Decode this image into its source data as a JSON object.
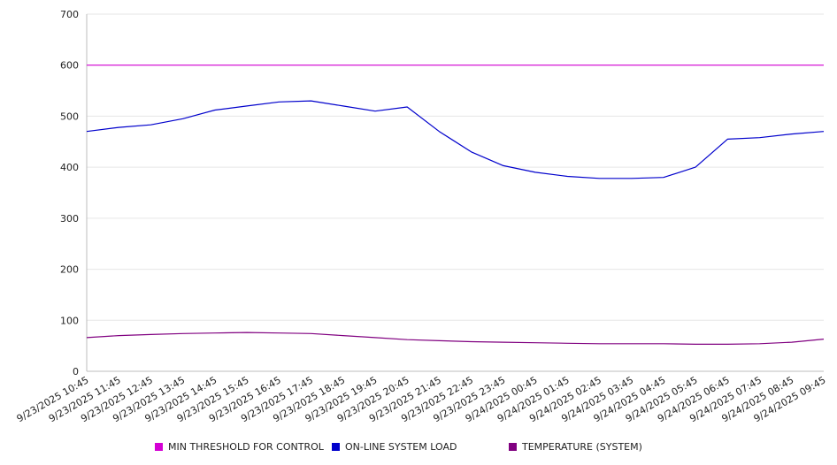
{
  "chart_data": {
    "type": "line",
    "x": [
      "9/23/2025 10:45",
      "9/23/2025 11:45",
      "9/23/2025 12:45",
      "9/23/2025 13:45",
      "9/23/2025 14:45",
      "9/23/2025 15:45",
      "9/23/2025 16:45",
      "9/23/2025 17:45",
      "9/23/2025 18:45",
      "9/23/2025 19:45",
      "9/23/2025 20:45",
      "9/23/2025 21:45",
      "9/23/2025 22:45",
      "9/23/2025 23:45",
      "9/24/2025 00:45",
      "9/24/2025 01:45",
      "9/24/2025 02:45",
      "9/24/2025 03:45",
      "9/24/2025 04:45",
      "9/24/2025 05:45",
      "9/24/2025 06:45",
      "9/24/2025 07:45",
      "9/24/2025 08:45",
      "9/24/2025 09:45"
    ],
    "ylim": [
      0,
      700
    ],
    "yticks": [
      0,
      100,
      200,
      300,
      400,
      500,
      600,
      700
    ],
    "grid": "horizontal",
    "legend_position": "bottom",
    "series": [
      {
        "name": "MIN THRESHOLD FOR CONTROL",
        "color": "#d400d4",
        "values": [
          600,
          600,
          600,
          600,
          600,
          600,
          600,
          600,
          600,
          600,
          600,
          600,
          600,
          600,
          600,
          600,
          600,
          600,
          600,
          600,
          600,
          600,
          600,
          600
        ]
      },
      {
        "name": "ON-LINE SYSTEM LOAD",
        "color": "#0000cc",
        "values": [
          470,
          478,
          483,
          495,
          512,
          520,
          528,
          530,
          520,
          510,
          518,
          470,
          430,
          403,
          390,
          382,
          378,
          378,
          380,
          400,
          455,
          458,
          465,
          470
        ]
      },
      {
        "name": "TEMPERATURE (SYSTEM)",
        "color": "#800080",
        "values": [
          66,
          70,
          72,
          74,
          75,
          76,
          75,
          74,
          70,
          66,
          62,
          60,
          58,
          57,
          56,
          55,
          54,
          54,
          54,
          53,
          53,
          54,
          57,
          63
        ]
      }
    ]
  }
}
